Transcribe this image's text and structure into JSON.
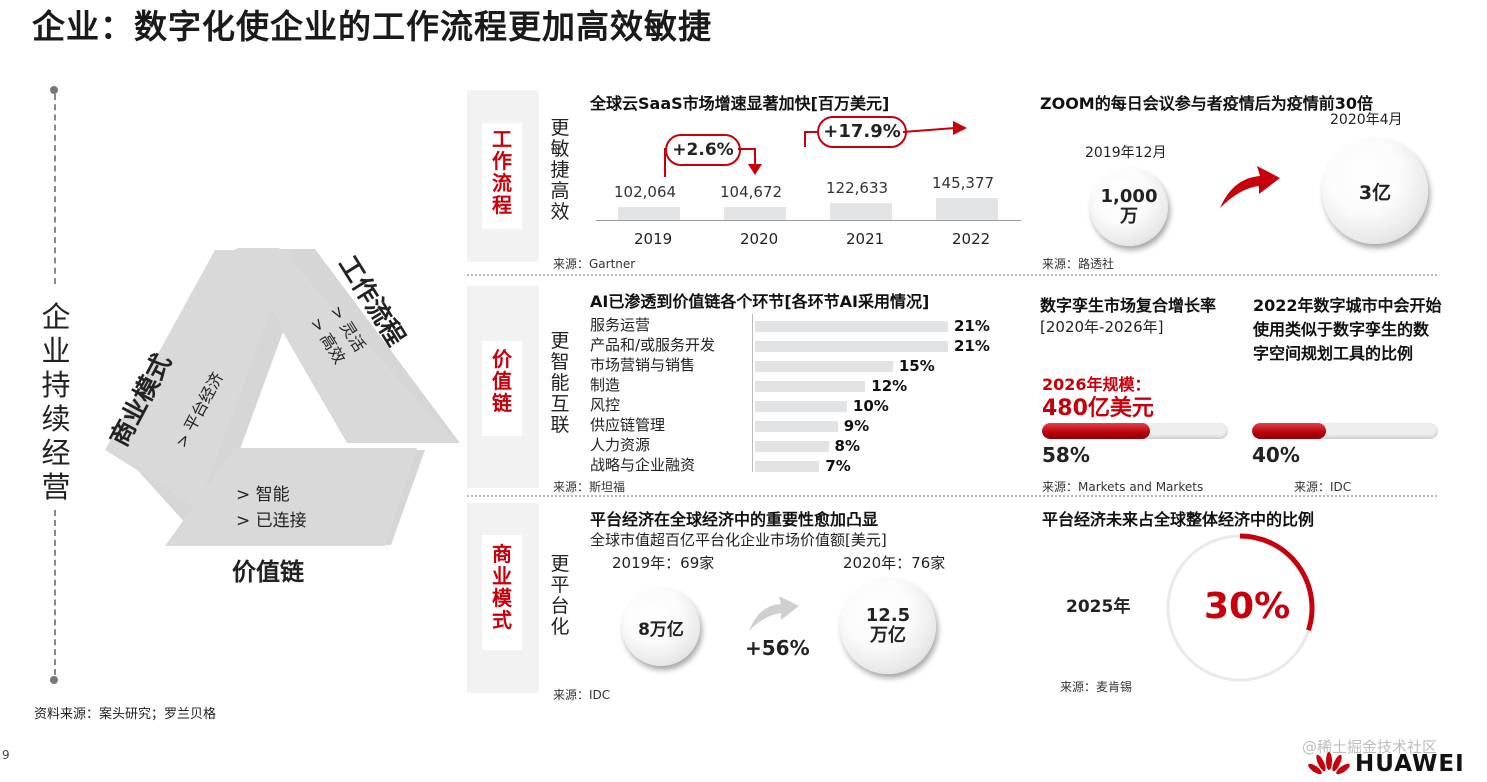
{
  "title": "企业：数字化使企业的工作流程更加高效敏捷",
  "left": {
    "vertical_title": "企业持续经营",
    "tri": {
      "workflow_label": "工作流程",
      "workflow_items": [
        "> 灵活",
        "> 高效"
      ],
      "business_label": "商业模式",
      "business_items": [
        "> 平台经济"
      ],
      "value_label": "价值链",
      "value_items": [
        "> 智能",
        "> 已连接"
      ]
    },
    "source": "资料来源：案头研究；罗兰贝格"
  },
  "page_number": "9",
  "row1": {
    "side_label": "工作流程",
    "sub_label": "更敏捷高效",
    "saas": {
      "title": "全球云SaaS市场增速显著加快[百万美元]",
      "source": "来源：Gartner",
      "growth1": "+2.6%",
      "growth2": "+17.9%"
    },
    "zoom": {
      "title": "ZOOM的每日会议参与者疫情后为疫情前30倍",
      "date1": "2019年12月",
      "value1": "1,000万",
      "date2": "2020年4月",
      "value2": "3亿",
      "source": "来源：路透社"
    }
  },
  "row2": {
    "side_label": "价值链",
    "sub_label": "更智能互联",
    "ai": {
      "title": "AI已渗透到价值链各个环节[各环节AI采用情况]",
      "source": "来源：斯坦福"
    },
    "twin": {
      "title": "数字孪生市场复合增长率",
      "period": "[2020年-2026年]",
      "scale_label": "2026年规模：",
      "scale_value": "480亿美元",
      "pct_label": "58%",
      "pct": 58,
      "source": "来源：Markets and Markets"
    },
    "city": {
      "title_lines": [
        "2022年数字城市中会开始",
        "使用类似于数字孪生的数",
        "字空间规划工具的比例"
      ],
      "pct_label": "40%",
      "pct": 40,
      "source": "来源：IDC"
    }
  },
  "row3": {
    "side_label": "商业模式",
    "sub_label": "更平台化",
    "platform": {
      "title": "平台经济在全球经济中的重要性愈加凸显",
      "subtitle": "全球市值超百亿平台化企业市场价值额[美元]",
      "year1": "2019年：69家",
      "value1": "8万亿",
      "year2": "2020年：76家",
      "value2": "12.5万亿",
      "growth": "+56%",
      "source": "来源：IDC"
    },
    "share": {
      "title": "平台经济未来占全球整体经济中的比例",
      "year": "2025年",
      "pct_label": "30%",
      "pct": 30,
      "source": "来源：麦肯锡"
    }
  },
  "chart_data": [
    {
      "type": "bar",
      "title": "全球云SaaS市场增速显著加快[百万美元]",
      "categories": [
        "2019",
        "2020",
        "2021",
        "2022"
      ],
      "values": [
        102064,
        104672,
        122633,
        145377
      ],
      "value_labels": [
        "102,064",
        "104,672",
        "122,633",
        "145,377"
      ]
    },
    {
      "type": "bar",
      "title": "AI已渗透到价值链各个环节[各环节AI采用情况]",
      "categories": [
        "服务运营",
        "产品和/或服务开发",
        "市场营销与销售",
        "制造",
        "风控",
        "供应链管理",
        "人力资源",
        "战略与企业融资"
      ],
      "values": [
        21,
        21,
        15,
        12,
        10,
        9,
        8,
        7
      ],
      "value_labels": [
        "21%",
        "21%",
        "15%",
        "12%",
        "10%",
        "9%",
        "8%",
        "7%"
      ]
    }
  ],
  "footer": {
    "brand": "HUAWEI",
    "watermark": "@稀土掘金技术社区"
  },
  "colors": {
    "accent": "#c7000b",
    "gray_bar": "#e3e4e6",
    "panel": "#f2f2f2"
  }
}
